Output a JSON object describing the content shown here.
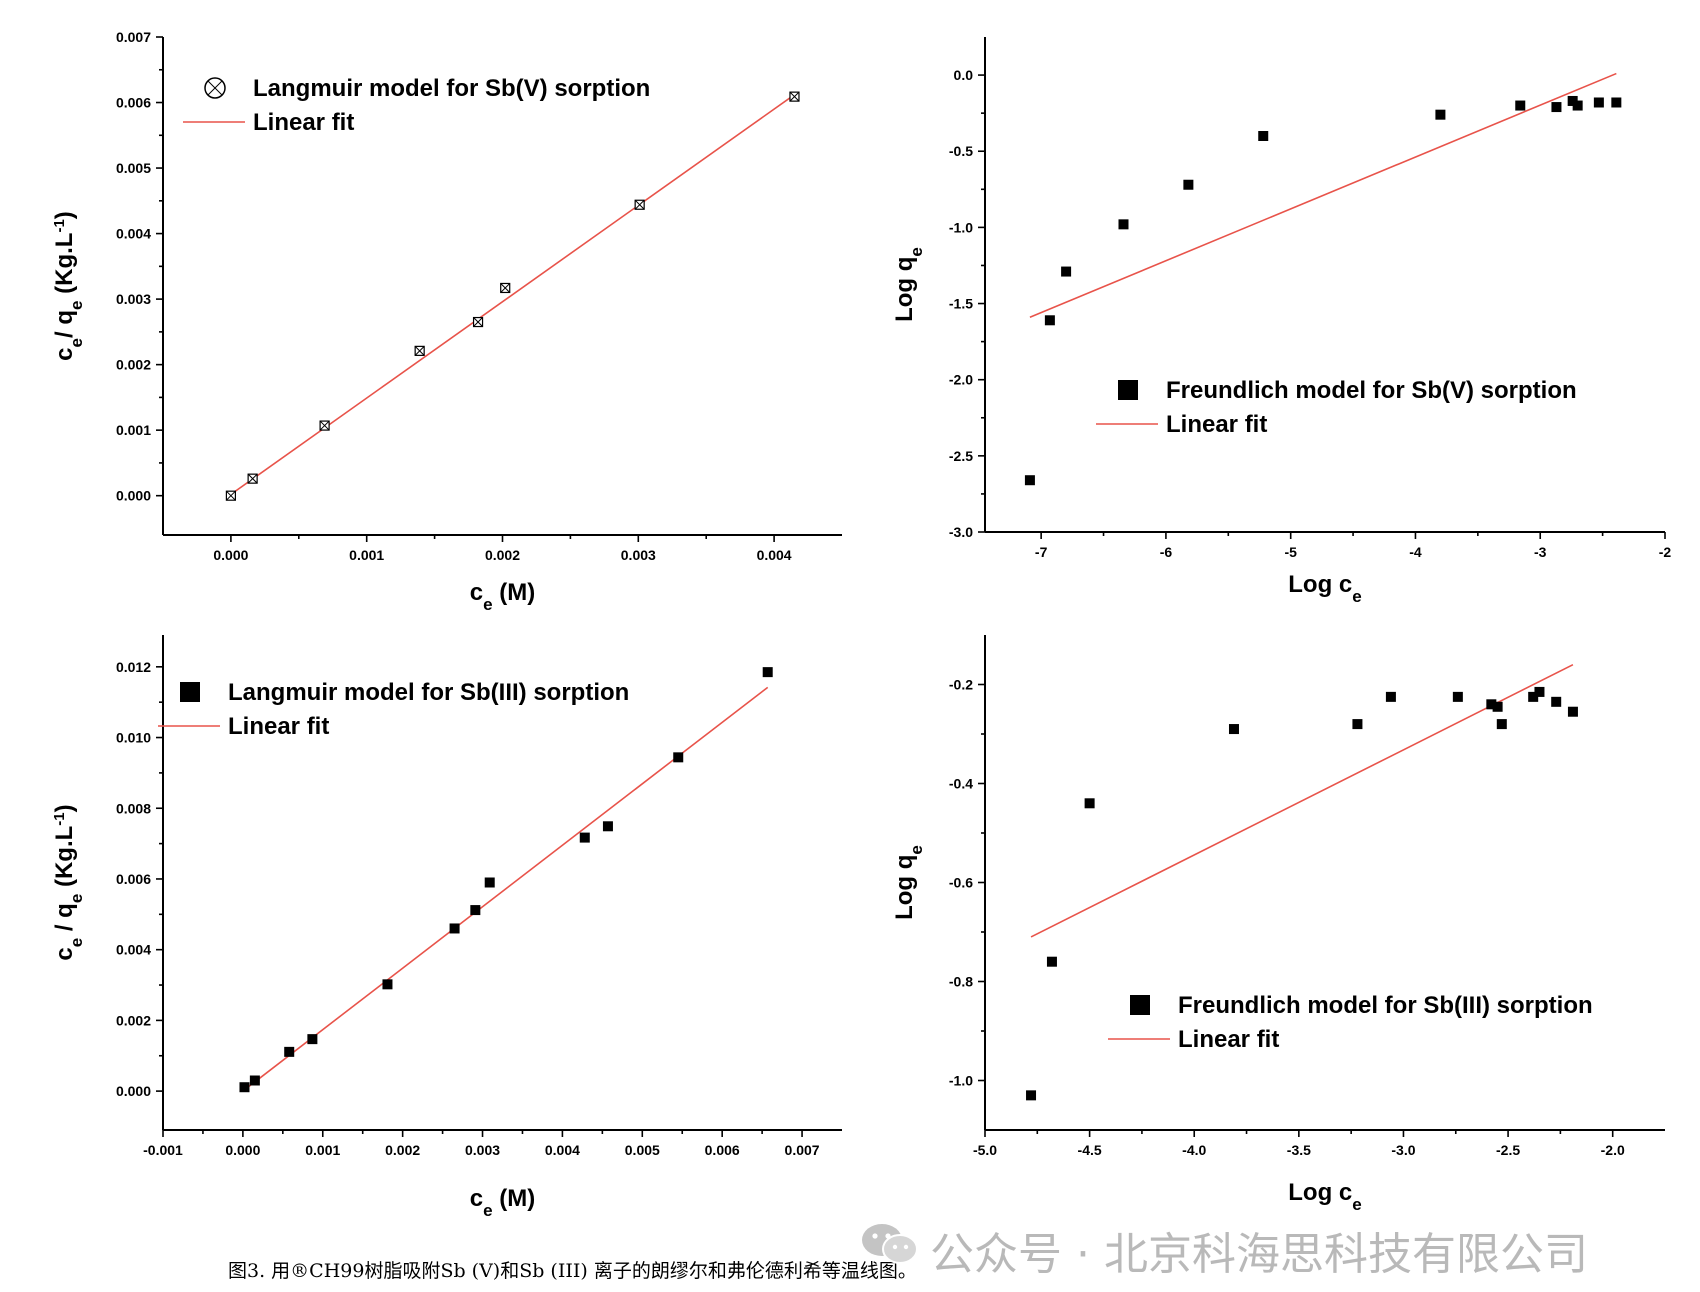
{
  "caption": "图3. 用®CH99树脂吸附Sb (V)和Sb (III) 离子的朗缪尔和弗伦德利希等温线图。",
  "watermark": "公众号 · 北京科海思科技有限公司",
  "colors": {
    "fit_line": "#e8534a",
    "points": "#000000",
    "watermark": "#b9b9b9"
  },
  "chart_data": [
    {
      "type": "scatter",
      "panel": "top-left",
      "xlabel": "c_e (M)",
      "ylabel": "c_e/ q_e (Kg.L^-1)",
      "xlim": [
        -0.0005,
        0.0045
      ],
      "ylim": [
        -0.0006,
        0.007
      ],
      "xticks": [
        "0.000",
        "0.001",
        "0.002",
        "0.003",
        "0.004"
      ],
      "yticks": [
        "0.000",
        "0.001",
        "0.002",
        "0.003",
        "0.004",
        "0.005",
        "0.006",
        "0.007"
      ],
      "marker": "crossed-circle",
      "legend": {
        "placement": "top-left",
        "points": "Langmuir model for Sb(V) sorption",
        "fit": "Linear fit"
      },
      "series": [
        {
          "name": "Langmuir model for Sb(V) sorption",
          "x": [
            0.0,
            0.00016,
            0.00069,
            0.00139,
            0.00182,
            0.00202,
            0.00301,
            0.00415
          ],
          "y": [
            0.0,
            0.00026,
            0.00107,
            0.00221,
            0.00265,
            0.00317,
            0.00444,
            0.00609
          ]
        }
      ],
      "fit": {
        "name": "Linear fit",
        "x": [
          0.0,
          0.00415
        ],
        "y": [
          2e-05,
          0.00612
        ]
      }
    },
    {
      "type": "scatter",
      "panel": "top-right",
      "xlabel": "Log c_e",
      "ylabel": "Log q_e",
      "xlim": [
        -7.45,
        -2.0
      ],
      "ylim": [
        -3.0,
        0.25
      ],
      "xticks": [
        "-7",
        "-6",
        "-5",
        "-4",
        "-3",
        "-2"
      ],
      "yticks": [
        "0.0",
        "-0.5",
        "-1.0",
        "-1.5",
        "-2.0",
        "-2.5",
        "-3.0"
      ],
      "marker": "square",
      "legend": {
        "placement": "center-right",
        "points": "Freundlich model for Sb(V) sorption",
        "fit": "Linear fit"
      },
      "series": [
        {
          "name": "Freundlich model for Sb(V) sorption",
          "x": [
            -7.09,
            -6.93,
            -6.8,
            -6.34,
            -5.82,
            -5.22,
            -3.8,
            -3.16,
            -2.87,
            -2.74,
            -2.7,
            -2.53,
            -2.39
          ],
          "y": [
            -2.66,
            -1.61,
            -1.29,
            -0.98,
            -0.72,
            -0.4,
            -0.26,
            -0.2,
            -0.21,
            -0.17,
            -0.2,
            -0.18,
            -0.18
          ]
        }
      ],
      "fit": {
        "name": "Linear fit",
        "x": [
          -7.09,
          -2.39
        ],
        "y": [
          -1.59,
          0.01
        ]
      }
    },
    {
      "type": "scatter",
      "panel": "bottom-left",
      "xlabel": "c_e (M)",
      "ylabel": "c_e / q_e (Kg.L^-1)",
      "xlim": [
        -0.001,
        0.0075
      ],
      "ylim": [
        -0.0011,
        0.0129
      ],
      "xticks": [
        "-0.001",
        "0.000",
        "0.001",
        "0.002",
        "0.003",
        "0.004",
        "0.005",
        "0.006",
        "0.007"
      ],
      "yticks": [
        "0.000",
        "0.002",
        "0.004",
        "0.006",
        "0.008",
        "0.010",
        "0.012"
      ],
      "marker": "square",
      "legend": {
        "placement": "top-left",
        "points": "Langmuir model for Sb(III) sorption",
        "fit": "Linear fit"
      },
      "series": [
        {
          "name": "Langmuir model for Sb(III) sorption",
          "x": [
            2e-05,
            0.00015,
            0.00058,
            0.00087,
            0.00181,
            0.00265,
            0.00291,
            0.00309,
            0.00428,
            0.00457,
            0.00545,
            0.00657
          ],
          "y": [
            0.00011,
            0.0003,
            0.00111,
            0.00147,
            0.00302,
            0.0046,
            0.00512,
            0.0059,
            0.00717,
            0.00749,
            0.00944,
            0.01185
          ]
        }
      ],
      "fit": {
        "name": "Linear fit",
        "x": [
          0.0,
          0.00657
        ],
        "y": [
          0.0,
          0.01142
        ]
      }
    },
    {
      "type": "scatter",
      "panel": "bottom-right",
      "xlabel": "Log c_e",
      "ylabel": "Log q_e",
      "xlim": [
        -5.0,
        -1.75
      ],
      "ylim": [
        -1.1,
        -0.1
      ],
      "xticks": [
        "-5.0",
        "-4.5",
        "-4.0",
        "-3.5",
        "-3.0",
        "-2.5",
        "-2.0"
      ],
      "yticks": [
        "-0.2",
        "-0.4",
        "-0.6",
        "-0.8",
        "-1.0"
      ],
      "marker": "square",
      "legend": {
        "placement": "bottom-right",
        "points": "Freundlich model for Sb(III) sorption",
        "fit": "Linear fit"
      },
      "series": [
        {
          "name": "Freundlich model for Sb(III) sorption",
          "x": [
            -4.78,
            -4.68,
            -4.5,
            -3.81,
            -3.22,
            -3.06,
            -2.74,
            -2.58,
            -2.55,
            -2.53,
            -2.38,
            -2.35,
            -2.27,
            -2.19
          ],
          "y": [
            -1.03,
            -0.76,
            -0.44,
            -0.29,
            -0.28,
            -0.225,
            -0.225,
            -0.24,
            -0.245,
            -0.28,
            -0.225,
            -0.215,
            -0.235,
            -0.255
          ]
        }
      ],
      "fit": {
        "name": "Linear fit",
        "x": [
          -4.78,
          -2.19
        ],
        "y": [
          -0.71,
          -0.16
        ]
      }
    }
  ]
}
